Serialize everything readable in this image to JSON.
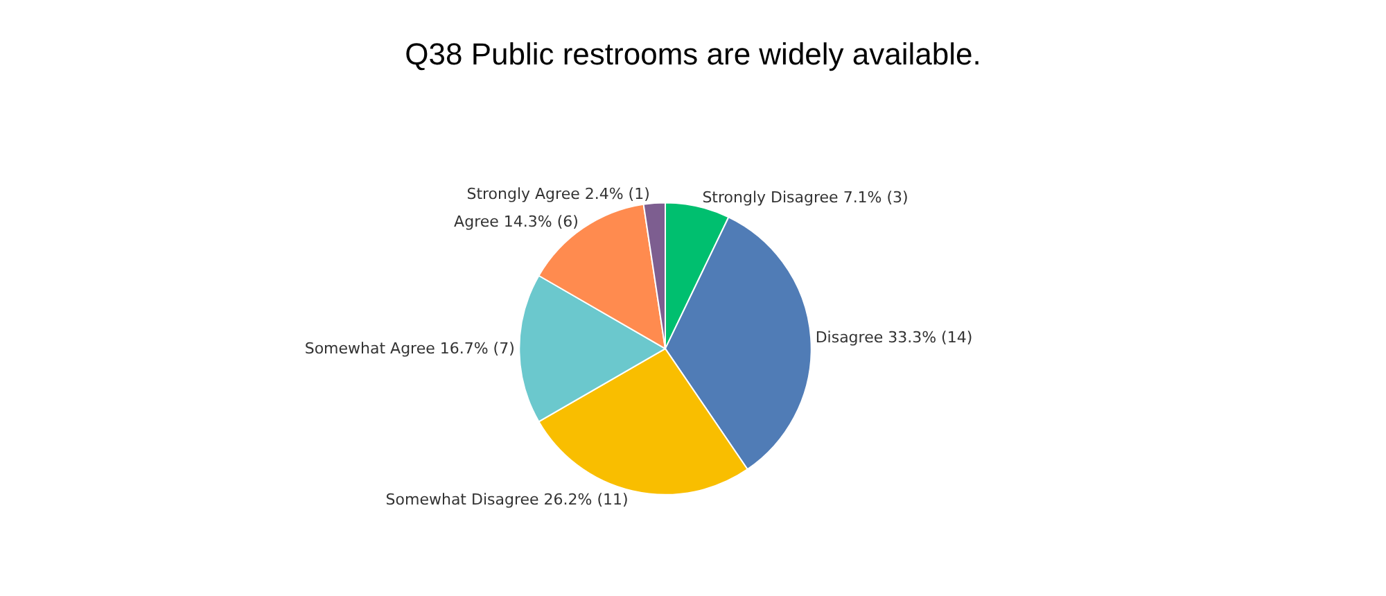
{
  "chart_data": {
    "type": "pie",
    "title": "Q38 Public restrooms are widely available.",
    "categories": [
      "Strongly Disagree",
      "Disagree",
      "Somewhat Disagree",
      "Somewhat Agree",
      "Agree",
      "Strongly Agree"
    ],
    "values": [
      3,
      14,
      11,
      7,
      6,
      1
    ],
    "value_labels": [
      "7.1% (3)",
      "33.3% (14)",
      "26.2% (11)",
      "16.7% (7)",
      "14.3% (6)",
      "2.4% (1)"
    ],
    "colors": [
      "#00bf6f",
      "#507cb6",
      "#f9be00",
      "#6bc8cd",
      "#ff8b4f",
      "#7d5e90"
    ]
  }
}
